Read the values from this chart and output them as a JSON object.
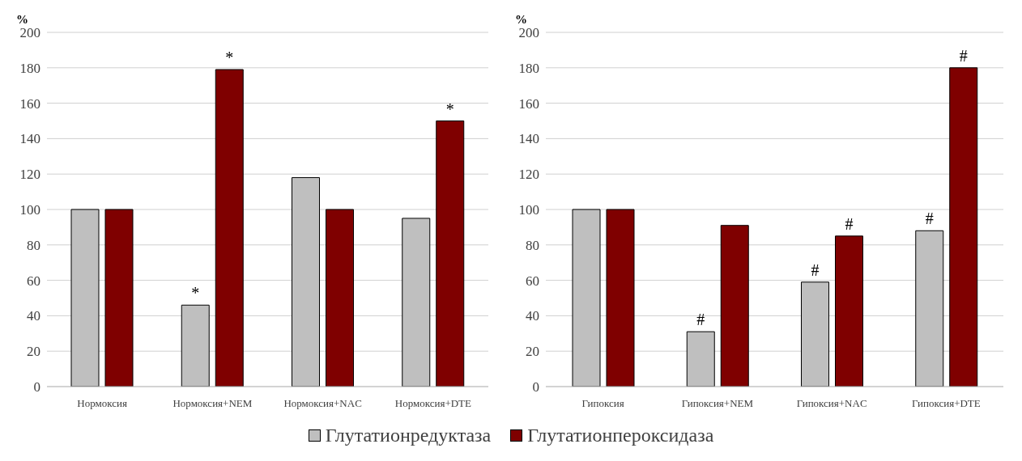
{
  "chart_data": [
    {
      "type": "bar",
      "ylabel": "%",
      "categories": [
        "Нормоксия",
        "Нормоксия+NEM",
        "Нормоксия+NAC",
        "Нормоксия+DTE"
      ],
      "ylim": [
        0,
        200
      ],
      "yticks": [
        0,
        20,
        40,
        60,
        80,
        100,
        120,
        140,
        160,
        180,
        200
      ],
      "grid": "y",
      "legend": "bottom",
      "series": [
        {
          "name": "Глутатионредуктаза",
          "color": "#bfbfbf",
          "values": [
            100,
            46,
            118,
            95
          ]
        },
        {
          "name": "Глутатионпероксидаза",
          "color": "#7f0000",
          "values": [
            100,
            179,
            100,
            150
          ]
        }
      ],
      "annotations": [
        {
          "text": "*",
          "x": "Нормоксия+NEM",
          "y": 46
        },
        {
          "text": "*",
          "x": "Нормоксия+NEM",
          "y": 179
        },
        {
          "text": "*",
          "x": "Нормоксия+DTE",
          "y": 150
        }
      ]
    },
    {
      "type": "bar",
      "ylabel": "%",
      "categories": [
        "Гипоксия",
        "Гипоксия+NEM",
        "Гипоксия+NAC",
        "Гипоксия+DTE"
      ],
      "ylim": [
        0,
        200
      ],
      "yticks": [
        0,
        20,
        40,
        60,
        80,
        100,
        120,
        140,
        160,
        180,
        200
      ],
      "grid": "y",
      "series": [
        {
          "color": "#bfbfbf",
          "values": [
            100,
            31,
            59,
            88
          ]
        },
        {
          "color": "#7f0000",
          "values": [
            100,
            91,
            85,
            180
          ]
        }
      ],
      "annotations": [
        {
          "text": "#",
          "x": "Гипоксия+NEM",
          "y": 31
        },
        {
          "text": "#",
          "x": "Гипоксия+NAC",
          "y": 59
        },
        {
          "text": "#",
          "x": "Гипоксия+NAC",
          "y": 85
        },
        {
          "text": "#",
          "x": "Гипоксия+DTE",
          "y": 88
        },
        {
          "text": "#",
          "x": "Гипоксия+DTE",
          "y": 180
        }
      ]
    }
  ]
}
